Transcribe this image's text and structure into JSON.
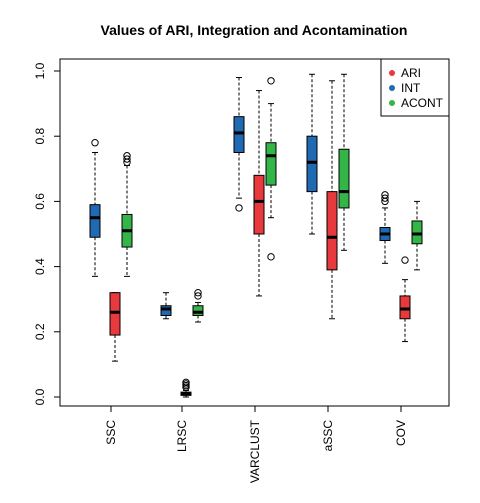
{
  "chart_data": {
    "type": "boxplot",
    "title": "Values of ARI, Integration and Acontamination",
    "xlabel": "",
    "ylabel": "",
    "ylim": [
      0,
      1
    ],
    "yticks": [
      "0.0",
      "0.2",
      "0.4",
      "0.6",
      "0.8",
      "1.0"
    ],
    "categories": [
      "SSC",
      "LRSC",
      "VARCLUST",
      "aSSC",
      "COV"
    ],
    "legend_position": "top-right",
    "series": [
      {
        "name": "ARI",
        "color": "#e8393c",
        "boxes": [
          {
            "whisker_low": 0.11,
            "q1": 0.19,
            "median": 0.26,
            "q3": 0.32,
            "whisker_high": 0.32,
            "outliers": []
          },
          {
            "whisker_low": 0.0,
            "q1": 0.005,
            "median": 0.01,
            "q3": 0.015,
            "whisker_high": 0.02,
            "outliers": [
              0.03,
              0.035,
              0.04,
              0.045
            ]
          },
          {
            "whisker_low": 0.31,
            "q1": 0.5,
            "median": 0.6,
            "q3": 0.68,
            "whisker_high": 0.94,
            "outliers": []
          },
          {
            "whisker_low": 0.24,
            "q1": 0.39,
            "median": 0.49,
            "q3": 0.63,
            "whisker_high": 0.97,
            "outliers": []
          },
          {
            "whisker_low": 0.17,
            "q1": 0.24,
            "median": 0.27,
            "q3": 0.31,
            "whisker_high": 0.36,
            "outliers": [
              0.42
            ]
          }
        ]
      },
      {
        "name": "INT",
        "color": "#1f6ab3",
        "boxes": [
          {
            "whisker_low": 0.37,
            "q1": 0.49,
            "median": 0.55,
            "q3": 0.59,
            "whisker_high": 0.75,
            "outliers": [
              0.78
            ]
          },
          {
            "whisker_low": 0.24,
            "q1": 0.25,
            "median": 0.27,
            "q3": 0.28,
            "whisker_high": 0.32,
            "outliers": []
          },
          {
            "whisker_low": 0.61,
            "q1": 0.75,
            "median": 0.81,
            "q3": 0.86,
            "whisker_high": 0.98,
            "outliers": [
              0.58
            ]
          },
          {
            "whisker_low": 0.5,
            "q1": 0.63,
            "median": 0.72,
            "q3": 0.8,
            "whisker_high": 0.99,
            "outliers": []
          },
          {
            "whisker_low": 0.41,
            "q1": 0.48,
            "median": 0.5,
            "q3": 0.52,
            "whisker_high": 0.58,
            "outliers": [
              0.6,
              0.61,
              0.62
            ]
          }
        ]
      },
      {
        "name": "ACONT",
        "color": "#33b548",
        "boxes": [
          {
            "whisker_low": 0.37,
            "q1": 0.46,
            "median": 0.51,
            "q3": 0.56,
            "whisker_high": 0.71,
            "outliers": [
              0.72,
              0.73,
              0.74
            ]
          },
          {
            "whisker_low": 0.23,
            "q1": 0.25,
            "median": 0.26,
            "q3": 0.28,
            "whisker_high": 0.29,
            "outliers": [
              0.31,
              0.32
            ]
          },
          {
            "whisker_low": 0.55,
            "q1": 0.65,
            "median": 0.74,
            "q3": 0.78,
            "whisker_high": 0.9,
            "outliers": [
              0.43,
              0.97
            ]
          },
          {
            "whisker_low": 0.45,
            "q1": 0.58,
            "median": 0.63,
            "q3": 0.76,
            "whisker_high": 0.99,
            "outliers": []
          },
          {
            "whisker_low": 0.39,
            "q1": 0.47,
            "median": 0.5,
            "q3": 0.54,
            "whisker_high": 0.6,
            "outliers": []
          }
        ]
      }
    ]
  }
}
